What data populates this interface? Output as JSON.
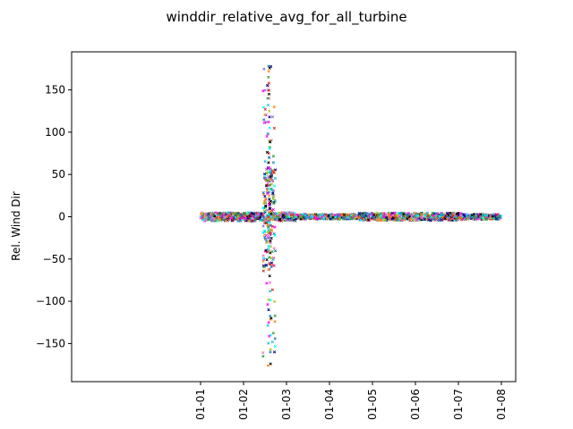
{
  "chart_data": {
    "type": "scatter",
    "title": "winddir_relative_avg_for_all_turbine",
    "xlabel": "",
    "ylabel": "Rel. Wind Dir",
    "x_axis_type": "date",
    "xlim": [
      "2018-12-29",
      "2019-01-08 08:00"
    ],
    "ylim": [
      -195,
      195
    ],
    "x_ticks": [
      "2019-01-01",
      "2019-01-02",
      "2019-01-03",
      "2019-01-04",
      "2019-01-05",
      "2019-01-06",
      "2019-01-07",
      "2019-01-08"
    ],
    "x_tick_labels": [
      "01-01",
      "01-02",
      "01-03",
      "01-04",
      "01-05",
      "01-06",
      "01-07",
      "01-08"
    ],
    "y_ticks": [
      -150,
      -100,
      -50,
      0,
      50,
      100,
      150
    ],
    "y_tick_labels": [
      "−150",
      "−100",
      "−50",
      "0",
      "50",
      "100",
      "150"
    ],
    "grid": false,
    "legend": "none",
    "marker": "x",
    "series_colors": [
      "#1f77b4",
      "#ff7f0e",
      "#2ca02c",
      "#d62728",
      "#9467bd",
      "#000000",
      "#e377c2",
      "#17becf",
      "#bcbd22",
      "#000080",
      "#ff00ff",
      "#00ffff"
    ],
    "series": [
      {
        "x": [
          "2019-01-02 14:00",
          "2019-01-02 14:05",
          "2019-01-02 13:55",
          "2019-01-02 14:10",
          "2019-01-02 13:50",
          "2019-01-02 14:15",
          "2019-01-02 14:20",
          "2019-01-02 13:45",
          "2019-01-02 14:25",
          "2019-01-02 14:30",
          "2019-01-02 14:00",
          "2019-01-02 14:35",
          "2019-01-02 13:40",
          "2019-01-02 14:40",
          "2019-01-02 14:45",
          "2019-01-02 14:05",
          "2019-01-02 14:15",
          "2019-01-02 13:58",
          "2019-01-02 14:50",
          "2019-01-02 14:55",
          "2019-01-02 15:00",
          "2019-01-02 14:20",
          "2019-01-02 14:03",
          "2019-01-02 14:08",
          "2019-01-02 14:13",
          "2019-01-02 14:18",
          "2019-01-02 14:22",
          "2019-01-02 14:27",
          "2019-01-02 14:32",
          "2019-01-02 14:37",
          "2019-01-02 14:42",
          "2019-01-02 13:52",
          "2019-01-02 14:47",
          "2019-01-02 14:52",
          "2019-01-02 13:48",
          "2019-01-02 15:05",
          "2019-01-02 14:12",
          "2019-01-02 14:17",
          "2019-01-02 14:23",
          "2019-01-02 14:28",
          "2019-01-02 14:33",
          "2019-01-02 14:38",
          "2019-01-02 14:43",
          "2019-01-02 14:48",
          "2019-01-02 13:57",
          "2019-01-02 14:02",
          "2019-01-02 14:07",
          "2019-01-02 15:10",
          "2019-01-02 14:58",
          "2019-01-02 13:43"
        ],
        "y": [
          178,
          172,
          165,
          158,
          150,
          145,
          140,
          132,
          125,
          118,
          112,
          105,
          98,
          90,
          82,
          75,
          70,
          64,
          58,
          52,
          47,
          42,
          37,
          33,
          29,
          25,
          21,
          17,
          13,
          10,
          -10,
          -13,
          -17,
          -21,
          -25,
          -30,
          -35,
          -40,
          -48,
          -55,
          -62,
          -70,
          -78,
          -88,
          -98,
          -110,
          -125,
          -140,
          -160,
          -176
        ]
      }
    ]
  }
}
